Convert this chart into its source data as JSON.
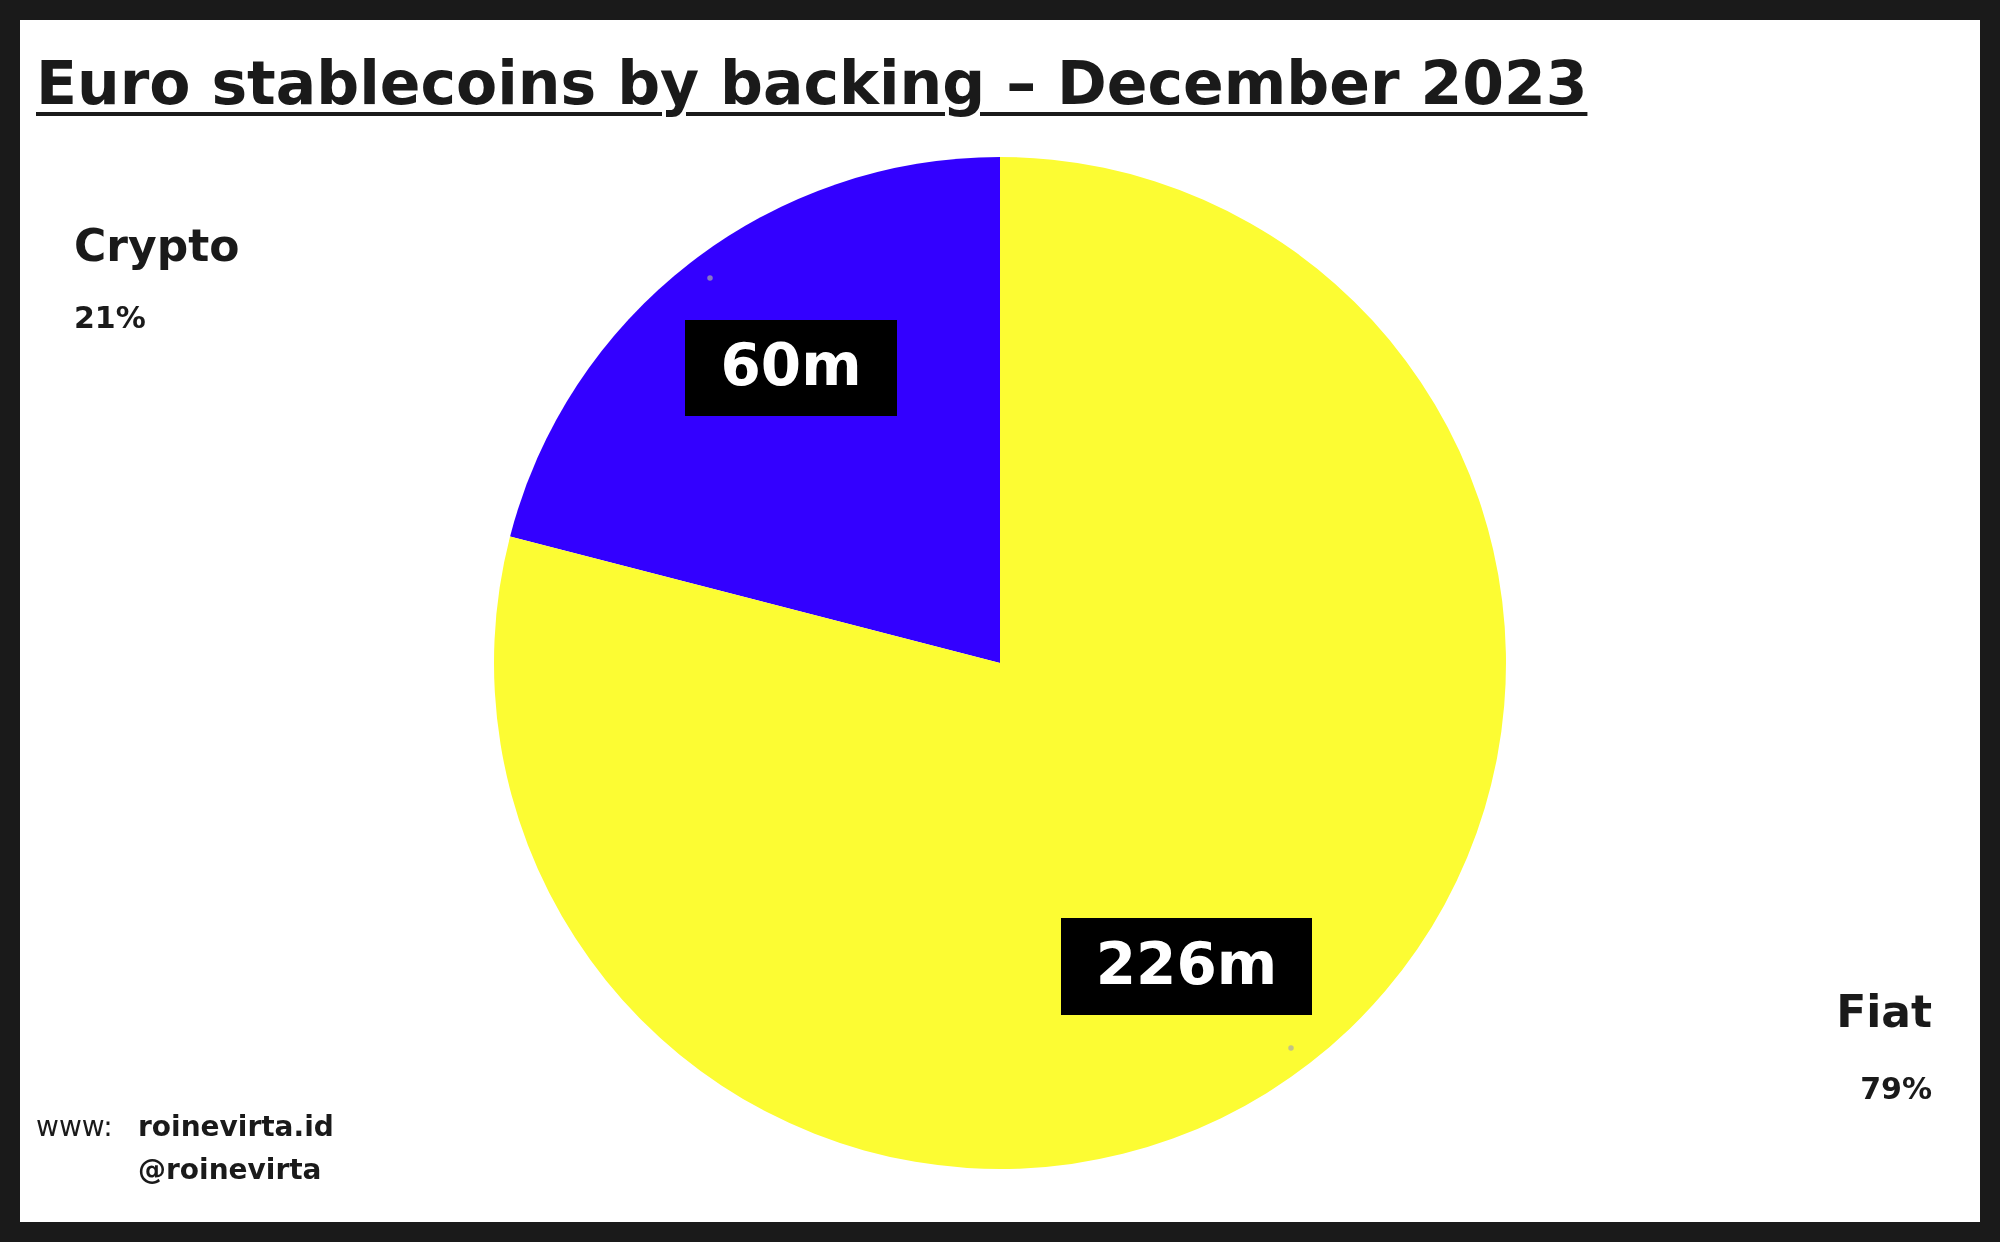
{
  "chart_data": {
    "type": "pie",
    "title": "Euro stablecoins by backing – December 2023",
    "categories": [
      "Crypto",
      "Fiat"
    ],
    "values": [
      60,
      226
    ],
    "colors": [
      "#3300ff",
      "#fcfc33"
    ],
    "value_labels": [
      "60m",
      "226m"
    ],
    "annotations": [
      "21%",
      "79%",
      "www:",
      "roinevirta.id",
      "@roinevirta"
    ]
  }
}
